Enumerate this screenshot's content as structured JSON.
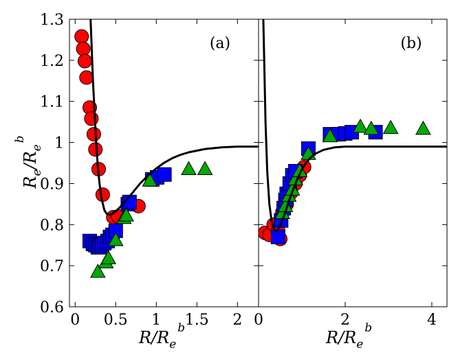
{
  "chart_data": [
    {
      "type": "scatter",
      "panel_label": "(a)",
      "xlabel": "R/R_e^b",
      "ylabel": "R_e/R_e^b",
      "xlim": [
        -0.07,
        2.26
      ],
      "ylim": [
        0.6,
        1.3
      ],
      "xticks": [
        0,
        0.5,
        1,
        1.5,
        2
      ],
      "xtick_labels": [
        "0",
        "0.5",
        "1",
        "1.5",
        "2"
      ],
      "yticks": [
        0.6,
        0.7,
        0.8,
        0.9,
        1.0,
        1.1,
        1.2,
        1.3
      ],
      "ytick_labels": [
        "0.6",
        "0.7",
        "0.8",
        "0.9",
        "1",
        "1.1",
        "1.2",
        "1.3"
      ],
      "series": [
        {
          "name": "circles",
          "marker": "circle",
          "color": "#ff0000",
          "x": [
            0.08,
            0.1,
            0.12,
            0.14,
            0.18,
            0.2,
            0.23,
            0.25,
            0.29,
            0.34,
            0.47,
            0.53,
            0.78
          ],
          "y": [
            1.258,
            1.228,
            1.198,
            1.158,
            1.085,
            1.058,
            1.02,
            0.983,
            0.935,
            0.873,
            0.818,
            0.82,
            0.845
          ]
        },
        {
          "name": "squares",
          "marker": "square",
          "color": "#0000ff",
          "x": [
            0.18,
            0.22,
            0.25,
            0.28,
            0.3,
            0.33,
            0.36,
            0.4,
            0.43,
            0.46,
            0.5,
            0.65,
            0.67,
            0.95,
            1.01,
            1.1
          ],
          "y": [
            0.76,
            0.753,
            0.75,
            0.745,
            0.745,
            0.75,
            0.755,
            0.76,
            0.77,
            0.775,
            0.785,
            0.85,
            0.855,
            0.91,
            0.915,
            0.922
          ]
        },
        {
          "name": "triangles",
          "marker": "triangle",
          "color": "#00aa00",
          "x": [
            0.28,
            0.38,
            0.41,
            0.5,
            0.6,
            0.63,
            0.92,
            1.4,
            1.6
          ],
          "y": [
            0.685,
            0.708,
            0.718,
            0.762,
            0.816,
            0.822,
            0.907,
            0.935,
            0.935
          ]
        }
      ],
      "curve": {
        "color": "#000000",
        "x": [
          0.19,
          0.2,
          0.21,
          0.22,
          0.24,
          0.26,
          0.28,
          0.3,
          0.33,
          0.36,
          0.39,
          0.42,
          0.45,
          0.5,
          0.55,
          0.6,
          0.7,
          0.8,
          0.9,
          1.0,
          1.1,
          1.2,
          1.3,
          1.4,
          1.6,
          1.8,
          2.0,
          2.26
        ],
        "y": [
          1.3,
          1.25,
          1.2,
          1.15,
          1.07,
          1.0,
          0.94,
          0.9,
          0.86,
          0.835,
          0.826,
          0.824,
          0.826,
          0.832,
          0.842,
          0.853,
          0.876,
          0.9,
          0.92,
          0.937,
          0.951,
          0.962,
          0.97,
          0.976,
          0.984,
          0.988,
          0.99,
          0.99
        ]
      }
    },
    {
      "type": "scatter",
      "panel_label": "(b)",
      "xlabel": "R/R_e^b",
      "ylabel": "",
      "xlim": [
        0.0,
        4.35
      ],
      "ylim": [
        0.6,
        1.3
      ],
      "xticks": [
        0,
        2,
        4
      ],
      "xtick_labels": [
        "0",
        "2",
        "4"
      ],
      "yticks": [
        0.6,
        0.7,
        0.8,
        0.9,
        1.0,
        1.1,
        1.2,
        1.3
      ],
      "series": [
        {
          "name": "circles",
          "marker": "circle",
          "color": "#ff0000",
          "x": [
            0.15,
            0.25,
            0.35,
            0.45,
            0.5,
            0.55,
            0.65,
            0.75,
            0.85,
            0.95,
            1.05
          ],
          "y": [
            0.78,
            0.775,
            0.8,
            0.785,
            0.765,
            0.83,
            0.85,
            0.878,
            0.9,
            0.92,
            0.94
          ]
        },
        {
          "name": "squares",
          "marker": "square",
          "color": "#0000ff",
          "x": [
            0.45,
            0.52,
            0.58,
            0.62,
            0.65,
            0.72,
            0.78,
            0.85,
            1.15,
            1.65,
            1.85,
            2.0,
            2.15,
            2.7
          ],
          "y": [
            0.77,
            0.81,
            0.84,
            0.86,
            0.875,
            0.9,
            0.92,
            0.93,
            0.985,
            1.02,
            1.02,
            1.022,
            1.025,
            1.025
          ]
        },
        {
          "name": "triangles",
          "marker": "triangle",
          "color": "#00aa00",
          "x": [
            0.55,
            0.62,
            0.7,
            0.78,
            0.85,
            0.95,
            1.15,
            1.65,
            2.35,
            2.6,
            3.05,
            3.8
          ],
          "y": [
            0.828,
            0.845,
            0.87,
            0.885,
            0.91,
            0.93,
            0.972,
            1.015,
            1.038,
            1.033,
            1.035,
            1.033
          ]
        }
      ],
      "curve": {
        "color": "#000000",
        "x": [
          0.11,
          0.13,
          0.16,
          0.2,
          0.25,
          0.3,
          0.35,
          0.4,
          0.45,
          0.5,
          0.6,
          0.7,
          0.8,
          0.9,
          1.0,
          1.1,
          1.2,
          1.3,
          1.5,
          1.75,
          2.0,
          2.5,
          3.0,
          3.5,
          4.0,
          4.35
        ],
        "y": [
          1.3,
          1.2,
          1.05,
          0.93,
          0.85,
          0.81,
          0.79,
          0.785,
          0.788,
          0.798,
          0.825,
          0.857,
          0.886,
          0.912,
          0.934,
          0.951,
          0.963,
          0.972,
          0.982,
          0.988,
          0.99,
          0.99,
          0.99,
          0.99,
          0.99,
          0.99
        ]
      }
    }
  ]
}
